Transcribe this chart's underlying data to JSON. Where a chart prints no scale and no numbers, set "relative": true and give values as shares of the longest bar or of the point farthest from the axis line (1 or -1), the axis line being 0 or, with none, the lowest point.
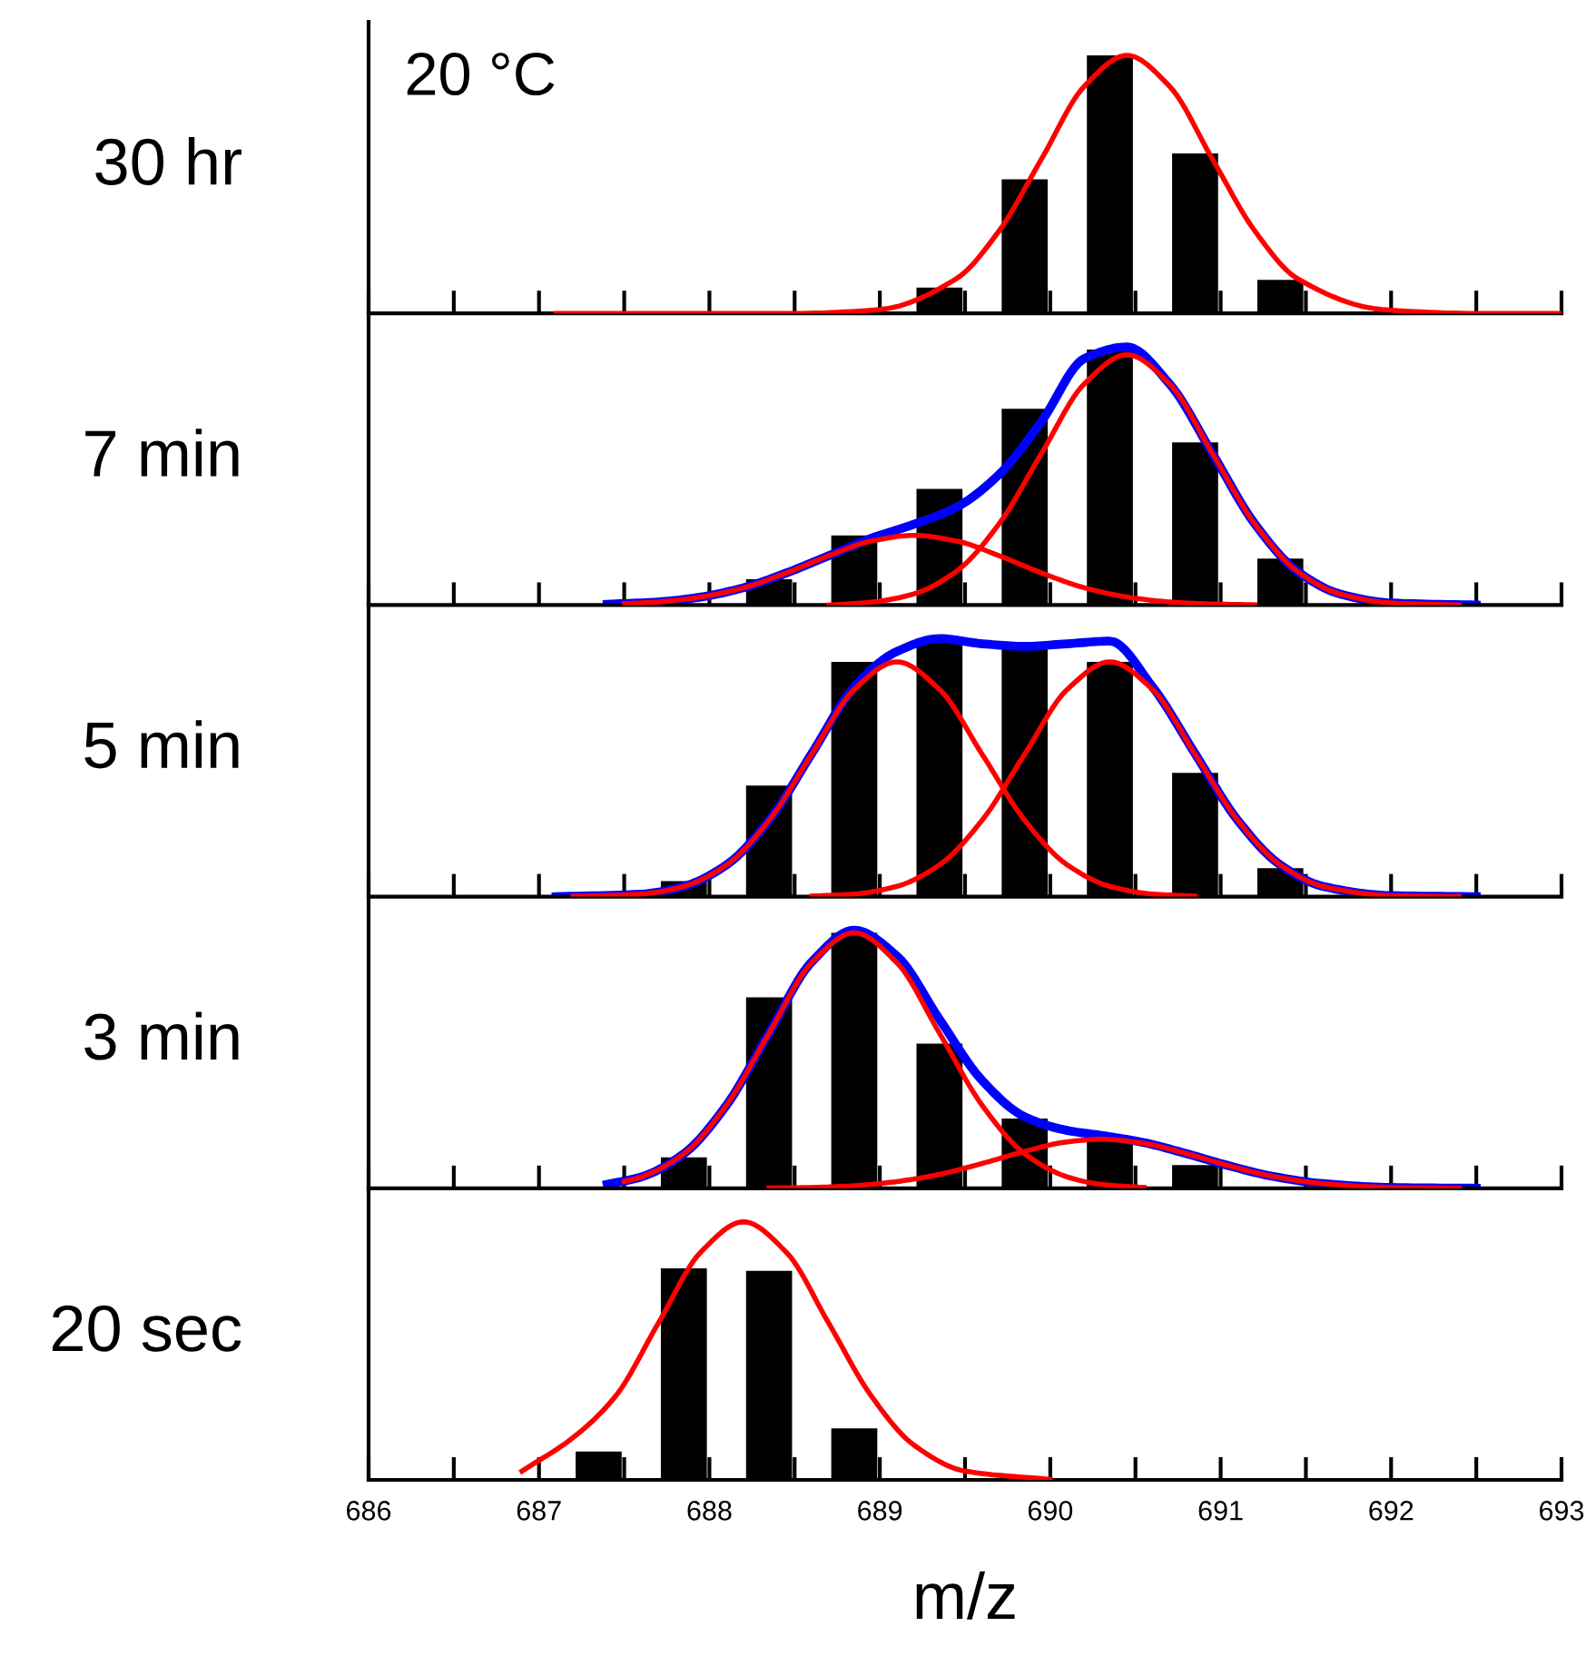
{
  "chart_data": [
    {
      "type": "bar",
      "relative": true,
      "ylabel": "30 hr",
      "annotations": [
        "20 °C"
      ],
      "xlim": [
        686,
        693
      ],
      "xticks": [
        686,
        {
          "value": 686.5,
          "label": null
        },
        687,
        {
          "value": 687.5,
          "label": null
        },
        688,
        {
          "value": 688.5,
          "label": null
        },
        689,
        {
          "value": 689.5,
          "label": null
        },
        690,
        {
          "value": 690.5,
          "label": null
        },
        691,
        {
          "value": 691.5,
          "label": null
        },
        692,
        {
          "value": 692.5,
          "label": null
        },
        693
      ],
      "tick_labels": false,
      "series": [
        {
          "color": "#000000",
          "x": [
            689.35,
            689.85,
            690.35,
            690.85,
            691.35
          ],
          "values": [
            0.1,
            0.52,
            1.0,
            0.62,
            0.13
          ]
        },
        {
          "type": "line",
          "color": "#ff0000",
          "x": [
            687.1,
            688.5,
            689.0,
            689.45,
            689.7,
            689.95,
            690.2,
            690.45,
            690.7,
            690.95,
            691.2,
            691.45,
            691.95,
            692.5,
            693.0
          ],
          "values": [
            0,
            0,
            0.015,
            0.135,
            0.32,
            0.6,
            0.88,
            1.0,
            0.88,
            0.6,
            0.32,
            0.135,
            0.015,
            0,
            0
          ]
        }
      ]
    },
    {
      "type": "bar",
      "relative": true,
      "ylabel": "7 min",
      "xlim": [
        686,
        693
      ],
      "xticks": [
        686,
        {
          "value": 686.5,
          "label": null
        },
        687,
        {
          "value": 687.5,
          "label": null
        },
        688,
        {
          "value": 688.5,
          "label": null
        },
        689,
        {
          "value": 689.5,
          "label": null
        },
        690,
        {
          "value": 690.5,
          "label": null
        },
        691,
        {
          "value": 691.5,
          "label": null
        },
        692,
        {
          "value": 692.5,
          "label": null
        },
        693
      ],
      "tick_labels": false,
      "series": [
        {
          "color": "#000000",
          "x": [
            688.35,
            688.85,
            689.35,
            689.85,
            690.35,
            690.85,
            691.35
          ],
          "values": [
            0.1,
            0.27,
            0.45,
            0.76,
            0.99,
            0.63,
            0.18
          ]
        },
        {
          "type": "line",
          "color": "#0000ff",
          "x": [
            687.4,
            687.7,
            687.95,
            688.2,
            688.45,
            688.7,
            688.95,
            689.2,
            689.45,
            689.7,
            689.95,
            690.2,
            690.45,
            690.7,
            690.95,
            691.2,
            691.45,
            691.7,
            692.0,
            692.5
          ],
          "values": [
            0.003,
            0.012,
            0.031,
            0.067,
            0.124,
            0.191,
            0.259,
            0.313,
            0.379,
            0.506,
            0.713,
            0.955,
            1.0,
            0.857,
            0.589,
            0.315,
            0.131,
            0.043,
            0.008,
            0
          ]
        },
        {
          "type": "line",
          "color": "#ff0000",
          "x": [
            687.5,
            687.7,
            687.95,
            688.2,
            688.45,
            688.7,
            688.95,
            689.2,
            689.45,
            689.7,
            689.95,
            690.2,
            690.45,
            690.7,
            690.95,
            691.2
          ],
          "values": [
            0.005,
            0.012,
            0.031,
            0.067,
            0.124,
            0.191,
            0.248,
            0.27,
            0.248,
            0.191,
            0.124,
            0.067,
            0.031,
            0.012,
            0.004,
            0.001
          ]
        },
        {
          "type": "line",
          "color": "#ff0000",
          "x": [
            688.7,
            688.95,
            689.2,
            689.45,
            689.7,
            689.95,
            690.2,
            690.45,
            690.7,
            690.95,
            691.2,
            691.45,
            691.7,
            692.0,
            692.4
          ],
          "values": [
            0,
            0.011,
            0.043,
            0.131,
            0.315,
            0.589,
            0.857,
            0.97,
            0.857,
            0.589,
            0.315,
            0.131,
            0.043,
            0.008,
            0
          ]
        }
      ]
    },
    {
      "type": "bar",
      "relative": true,
      "ylabel": "5 min",
      "xlim": [
        686,
        693
      ],
      "xticks": [
        686,
        {
          "value": 686.5,
          "label": null
        },
        687,
        {
          "value": 687.5,
          "label": null
        },
        688,
        {
          "value": 688.5,
          "label": null
        },
        689,
        {
          "value": 689.5,
          "label": null
        },
        690,
        {
          "value": 690.5,
          "label": null
        },
        691,
        {
          "value": 691.5,
          "label": null
        },
        692,
        {
          "value": 692.5,
          "label": null
        },
        693
      ],
      "tick_labels": false,
      "series": [
        {
          "color": "#000000",
          "x": [
            687.85,
            688.35,
            688.85,
            689.35,
            689.85,
            690.35,
            690.85,
            691.35
          ],
          "values": [
            0.06,
            0.43,
            0.91,
            1.0,
            0.96,
            0.91,
            0.48,
            0.11
          ]
        },
        {
          "type": "line",
          "color": "#0000ff",
          "x": [
            687.1,
            687.6,
            687.85,
            688.1,
            688.35,
            688.6,
            688.85,
            689.1,
            689.35,
            689.6,
            689.85,
            690.1,
            690.35,
            690.6,
            690.85,
            691.1,
            691.35,
            691.6,
            692.0,
            692.5
          ],
          "values": [
            0,
            0.01,
            0.04,
            0.123,
            0.296,
            0.554,
            0.813,
            0.95,
            1.0,
            0.98,
            0.97,
            0.98,
            0.99,
            0.813,
            0.554,
            0.296,
            0.123,
            0.04,
            0.004,
            0
          ]
        },
        {
          "type": "line",
          "color": "#ff0000",
          "x": [
            687.2,
            687.6,
            687.85,
            688.1,
            688.35,
            688.6,
            688.85,
            689.1,
            689.35,
            689.6,
            689.85,
            690.1,
            690.35,
            690.6,
            690.85
          ],
          "values": [
            0.001,
            0.01,
            0.04,
            0.123,
            0.296,
            0.552,
            0.803,
            0.91,
            0.803,
            0.552,
            0.296,
            0.123,
            0.04,
            0.01,
            0.002
          ]
        },
        {
          "type": "line",
          "color": "#ff0000",
          "x": [
            688.6,
            688.85,
            689.1,
            689.35,
            689.6,
            689.85,
            690.1,
            690.35,
            690.6,
            690.85,
            691.1,
            691.35,
            691.6,
            692.0,
            692.4
          ],
          "values": [
            0.002,
            0.01,
            0.04,
            0.123,
            0.296,
            0.552,
            0.803,
            0.91,
            0.803,
            0.552,
            0.296,
            0.123,
            0.04,
            0.004,
            0
          ]
        }
      ]
    },
    {
      "type": "bar",
      "relative": true,
      "ylabel": "3 min",
      "xlim": [
        686,
        693
      ],
      "xticks": [
        686,
        {
          "value": 686.5,
          "label": null
        },
        687,
        {
          "value": 687.5,
          "label": null
        },
        688,
        {
          "value": 688.5,
          "label": null
        },
        689,
        {
          "value": 689.5,
          "label": null
        },
        690,
        {
          "value": 690.5,
          "label": null
        },
        691,
        {
          "value": 691.5,
          "label": null
        },
        692,
        {
          "value": 692.5,
          "label": null
        },
        693
      ],
      "tick_labels": false,
      "series": [
        {
          "color": "#000000",
          "x": [
            687.85,
            688.35,
            688.85,
            689.35,
            689.85,
            690.35,
            690.85
          ],
          "values": [
            0.12,
            0.74,
            0.99,
            0.56,
            0.27,
            0.19,
            0.09
          ]
        },
        {
          "type": "line",
          "color": "#0000ff",
          "x": [
            687.4,
            687.6,
            687.85,
            688.1,
            688.35,
            688.6,
            688.85,
            689.1,
            689.35,
            689.6,
            689.85,
            690.1,
            690.3,
            690.55,
            690.8,
            691.05,
            691.3,
            691.6,
            692.0,
            692.5
          ],
          "values": [
            0.015,
            0.044,
            0.134,
            0.322,
            0.602,
            0.877,
            1.0,
            0.9,
            0.655,
            0.418,
            0.277,
            0.224,
            0.205,
            0.177,
            0.134,
            0.087,
            0.047,
            0.018,
            0.003,
            0
          ]
        },
        {
          "type": "line",
          "color": "#ff0000",
          "x": [
            687.5,
            687.6,
            687.85,
            688.1,
            688.35,
            688.6,
            688.85,
            689.1,
            689.35,
            689.6,
            689.85,
            690.1,
            690.3,
            690.55
          ],
          "values": [
            0.026,
            0.044,
            0.134,
            0.322,
            0.601,
            0.874,
            0.99,
            0.874,
            0.601,
            0.322,
            0.134,
            0.044,
            0.015,
            0.003
          ]
        },
        {
          "type": "line",
          "color": "#ff0000",
          "x": [
            688.35,
            688.6,
            688.85,
            689.1,
            689.35,
            689.6,
            689.85,
            690.1,
            690.3,
            690.55,
            690.8,
            691.05,
            691.3,
            691.6,
            692.0,
            692.4
          ],
          "values": [
            0.001,
            0.003,
            0.01,
            0.026,
            0.054,
            0.096,
            0.143,
            0.18,
            0.19,
            0.174,
            0.134,
            0.087,
            0.047,
            0.018,
            0.003,
            0
          ]
        }
      ]
    },
    {
      "type": "bar",
      "relative": true,
      "ylabel": "20 sec",
      "xlabel": "m/z",
      "xlim": [
        686,
        693
      ],
      "xticks": [
        686,
        {
          "value": 686.5,
          "label": null
        },
        687,
        {
          "value": 687.5,
          "label": null
        },
        688,
        {
          "value": 688.5,
          "label": null
        },
        689,
        {
          "value": 689.5,
          "label": null
        },
        690,
        {
          "value": 690.5,
          "label": null
        },
        691,
        {
          "value": 691.5,
          "label": null
        },
        692,
        {
          "value": 692.5,
          "label": null
        },
        693
      ],
      "tick_labels": "x",
      "series": [
        {
          "color": "#000000",
          "x": [
            687.35,
            687.85,
            688.35,
            688.85
          ],
          "values": [
            0.11,
            0.82,
            0.81,
            0.2
          ]
        },
        {
          "type": "line",
          "color": "#ff0000",
          "x": [
            686.9,
            687.2,
            687.45,
            687.7,
            687.95,
            688.2,
            688.45,
            688.7,
            688.95,
            689.2,
            689.5,
            690.0
          ],
          "values": [
            0.034,
            0.164,
            0.325,
            0.607,
            0.883,
            1.0,
            0.883,
            0.607,
            0.325,
            0.135,
            0.034,
            0.002
          ]
        }
      ]
    }
  ]
}
